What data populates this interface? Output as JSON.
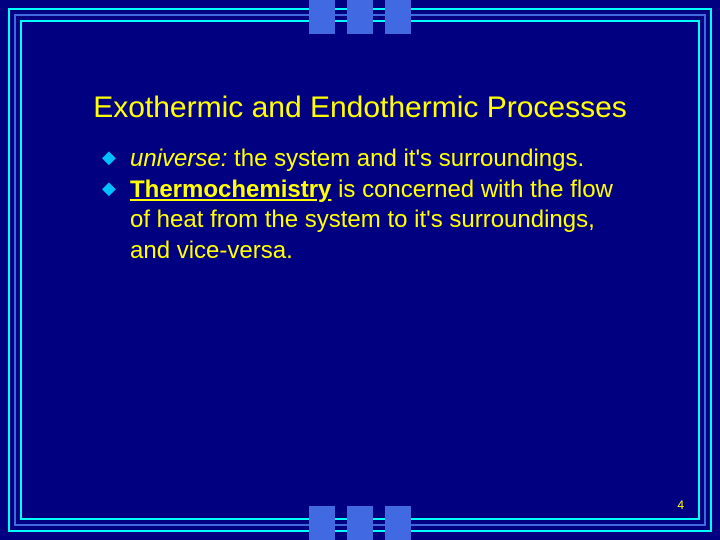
{
  "slide": {
    "title": "Exothermic and Endothermic Processes",
    "bullet1_term": "universe:",
    "bullet1_rest": " the system and it's surroundings.",
    "bullet2_term": "Thermochemistry",
    "bullet2_rest": " is concerned with the flow of heat from the system to it's surroundings, and vice-versa.",
    "page_number": "4"
  },
  "style": {
    "background_color": "#000080",
    "text_color": "#ffff00",
    "border_accent_color": "#00ffff",
    "border_mid_color": "#4169e1",
    "bullet_marker_color": "#00bfff",
    "title_fontsize": 30,
    "body_fontsize": 24,
    "pagenum_fontsize": 12
  }
}
